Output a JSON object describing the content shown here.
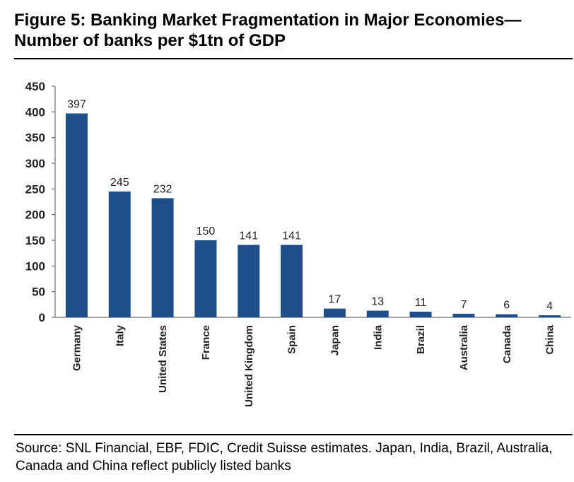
{
  "title": {
    "line1": "Figure 5: Banking Market Fragmentation in Major Economies—",
    "line2": "Number of banks per $1tn of GDP"
  },
  "source": "Source: SNL Financial, EBF, FDIC, Credit Suisse estimates. Japan, India, Brazil, Australia, Canada and China reflect publicly listed banks",
  "colors": {
    "bar": "#1f4e8c",
    "axis": "#6f6f6f",
    "text": "#222222"
  },
  "chart_data": {
    "type": "bar",
    "title": "Figure 5: Banking Market Fragmentation in Major Economies—Number of banks per $1tn of GDP",
    "xlabel": "",
    "ylabel": "",
    "categories": [
      "Germany",
      "Italy",
      "United States",
      "France",
      "United Kingdom",
      "Spain",
      "Japan",
      "India",
      "Brazil",
      "Australia",
      "Canada",
      "China"
    ],
    "values": [
      397,
      245,
      232,
      150,
      141,
      141,
      17,
      13,
      11,
      7,
      6,
      4
    ],
    "data_labels": [
      "397",
      "245",
      "232",
      "150",
      "141",
      "141",
      "17",
      "13",
      "11",
      "7",
      "6",
      "4"
    ],
    "yticks": [
      "0",
      "50",
      "100",
      "150",
      "200",
      "250",
      "300",
      "350",
      "400",
      "450"
    ],
    "ylim": [
      0,
      450
    ],
    "grid": false,
    "legend": "none"
  }
}
